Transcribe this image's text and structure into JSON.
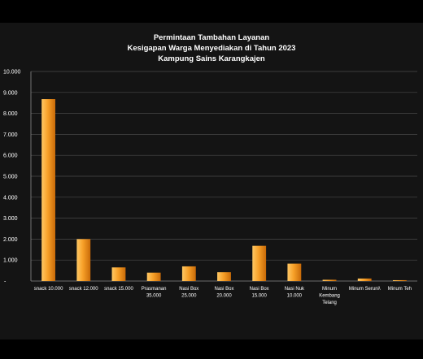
{
  "chart_data": {
    "type": "bar",
    "title_lines": [
      "Permintaan Tambahan Layanan",
      "Kesigapan Warga Menyediakan di Tahun 2023",
      "Kampung Sains Karangkajen"
    ],
    "categories": [
      [
        "snack 10.000"
      ],
      [
        "snack 12.000"
      ],
      [
        "snack 15.000"
      ],
      [
        "Prasmanan",
        "35.000"
      ],
      [
        "Nasi Box",
        "25.000"
      ],
      [
        "Nasi Box",
        "20.000"
      ],
      [
        "Nasi Box",
        "15.000"
      ],
      [
        "Nasi Nuk",
        "10.000"
      ],
      [
        "Minum",
        "Kembang",
        "Telang"
      ],
      [
        "Minum Seruni\\"
      ],
      [
        "Minum Teh"
      ]
    ],
    "values": [
      8680,
      2000,
      650,
      400,
      700,
      420,
      1680,
      830,
      60,
      120,
      40
    ],
    "ylim": [
      0,
      10000
    ],
    "ytick_labels": [
      "-",
      "1.000",
      "2.000",
      "3.000",
      "4.000",
      "5.000",
      "6.000",
      "7.000",
      "8.000",
      "9.000",
      "10.000"
    ],
    "grid": true,
    "legend": "none",
    "colors": {
      "bar_light": "#ffc864",
      "bar_mid": "#f7a028",
      "bar_dark": "#c86a08",
      "grid": "#4a4a4a",
      "background": "#141414"
    }
  }
}
